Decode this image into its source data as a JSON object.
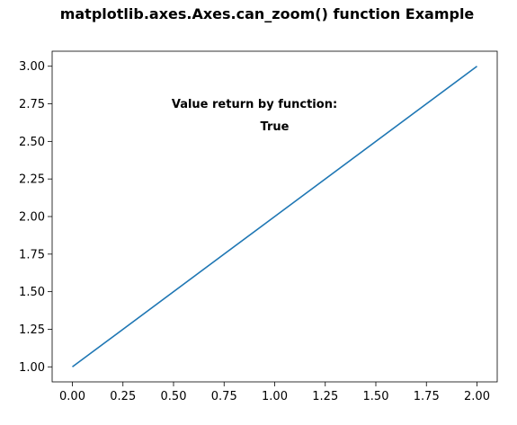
{
  "chart_data": {
    "type": "line",
    "title": "matplotlib.axes.Axes.can_zoom() function Example",
    "xlabel": "",
    "ylabel": "",
    "x": [
      0,
      1,
      2
    ],
    "series": [
      {
        "values": [
          1,
          2,
          3
        ],
        "color": "#1f77b4"
      }
    ],
    "xlim": [
      -0.1,
      2.1
    ],
    "ylim": [
      0.9,
      3.1
    ],
    "x_ticks": [
      0.0,
      0.25,
      0.5,
      0.75,
      1.0,
      1.25,
      1.5,
      1.75,
      2.0
    ],
    "x_tick_labels": [
      "0.00",
      "0.25",
      "0.50",
      "0.75",
      "1.00",
      "1.25",
      "1.50",
      "1.75",
      "2.00"
    ],
    "y_ticks": [
      1.0,
      1.25,
      1.5,
      1.75,
      2.0,
      2.25,
      2.5,
      2.75,
      3.0
    ],
    "y_tick_labels": [
      "1.00",
      "1.25",
      "1.50",
      "1.75",
      "2.00",
      "2.25",
      "2.50",
      "2.75",
      "3.00"
    ],
    "grid": false,
    "legend": "none",
    "annotations": [
      {
        "text": "Value return by function:",
        "x": 0.9,
        "y": 2.75
      },
      {
        "text": "True",
        "x": 1.0,
        "y": 2.6
      }
    ]
  },
  "colors": {
    "line": "#1f77b4",
    "axes": "#000000",
    "background": "#ffffff"
  }
}
